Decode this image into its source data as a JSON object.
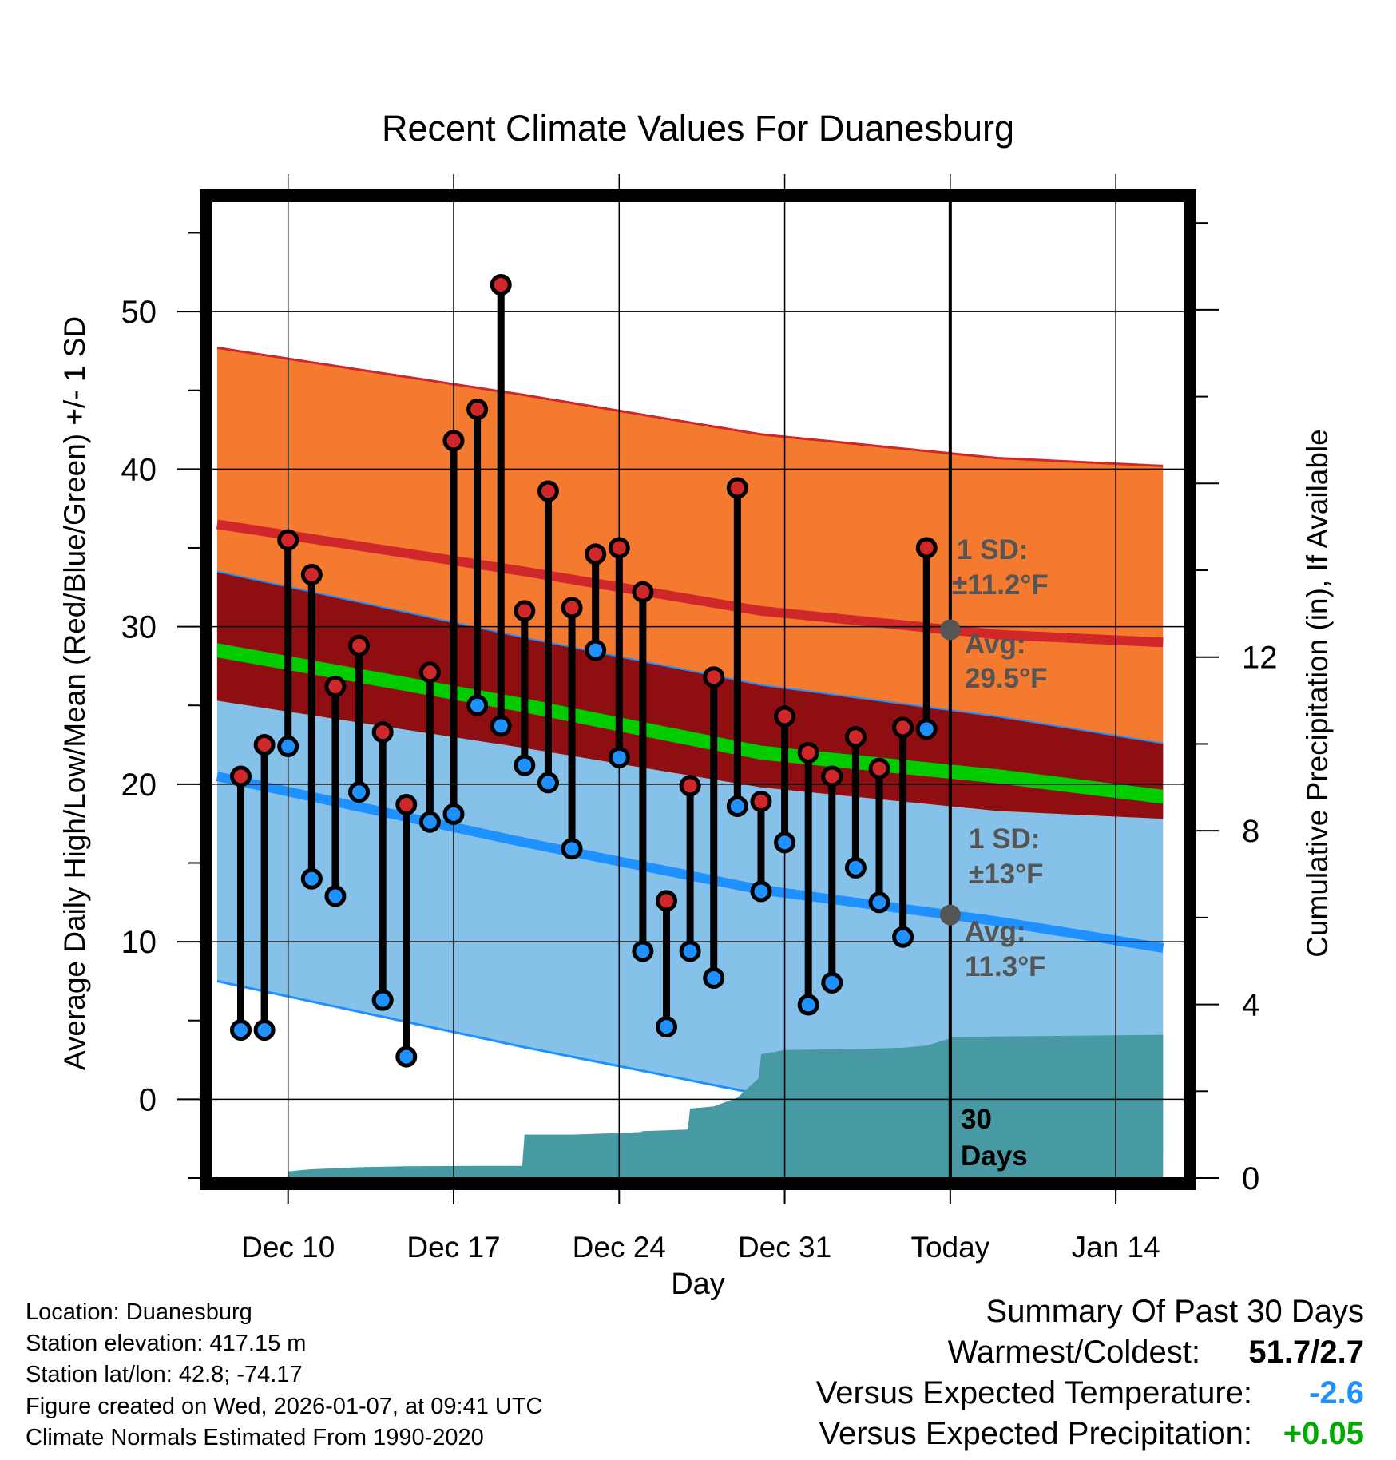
{
  "chart_data": {
    "type": "line",
    "title": "Recent Climate Values For Duanesburg",
    "xlabel": "Day",
    "ylabel": "Average Daily High/Low/Mean (Red/Blue/Green) +/- 1 SD",
    "y2label": "Cumulative Precipitation (in), If Available",
    "xticks": [
      "Dec 10",
      "Dec 17",
      "Dec 24",
      "Dec 31",
      "Today",
      "Jan 14"
    ],
    "xlim": [
      -3.3,
      37.9
    ],
    "ylim": [
      -5,
      57
    ],
    "y_ticks": [
      0,
      10,
      20,
      30,
      40,
      50
    ],
    "y2lim": [
      0,
      22.5
    ],
    "y2_ticks": [
      0,
      4,
      8,
      12
    ],
    "period_label": "30 Days",
    "days": [
      -2,
      -1,
      0,
      1,
      2,
      3,
      4,
      5,
      6,
      7,
      8,
      9,
      10,
      11,
      12,
      13,
      14,
      15,
      16,
      17,
      18,
      19,
      20,
      21,
      22,
      23,
      24,
      25,
      26,
      27
    ],
    "highs": [
      20.5,
      22.5,
      35.5,
      33.3,
      26.2,
      28.8,
      23.3,
      18.7,
      27.1,
      41.8,
      43.8,
      51.7,
      31.0,
      38.6,
      31.2,
      34.6,
      35.0,
      32.2,
      12.6,
      19.9,
      26.8,
      38.8,
      18.9,
      24.3,
      22.0,
      20.5,
      23.0,
      21.0,
      23.6,
      35.0
    ],
    "lows": [
      4.4,
      4.4,
      22.4,
      14.0,
      12.9,
      19.5,
      6.3,
      2.7,
      17.6,
      18.1,
      25.0,
      23.7,
      21.2,
      20.1,
      15.9,
      28.5,
      21.7,
      9.4,
      4.6,
      9.4,
      7.7,
      18.6,
      13.2,
      16.3,
      6.0,
      7.4,
      14.7,
      12.5,
      10.3,
      23.5
    ],
    "normal_high": {
      "x": [
        -3,
        10,
        20,
        30,
        37
      ],
      "mean": [
        36.5,
        33.5,
        31.0,
        29.5,
        29.0
      ],
      "sd": 11.2
    },
    "normal_low": {
      "x": [
        -3,
        10,
        20,
        30,
        37
      ],
      "mean": [
        20.5,
        16.3,
        13.3,
        11.3,
        9.6
      ],
      "sd": 13.0
    },
    "normal_mean": {
      "x": [
        -3,
        10,
        20,
        30,
        37
      ],
      "mean": [
        28.5,
        25.0,
        22.0,
        20.5,
        19.2
      ],
      "sd_halfwidth": 0.45
    },
    "precip": {
      "x": [
        -3,
        -0.05,
        0,
        0.9,
        3,
        5,
        8,
        9.9,
        10,
        11,
        12,
        13,
        14,
        14.9,
        15,
        16,
        16.9,
        17,
        18,
        19,
        19.9,
        20,
        21,
        24,
        26,
        27,
        27.9,
        28,
        37
      ],
      "cum": [
        0,
        0,
        0.15,
        0.2,
        0.25,
        0.27,
        0.28,
        0.28,
        1.0,
        1.0,
        1.0,
        1.02,
        1.04,
        1.06,
        1.08,
        1.1,
        1.12,
        1.6,
        1.65,
        1.85,
        2.3,
        2.85,
        2.95,
        2.97,
        3.0,
        3.05,
        3.2,
        3.25,
        3.3
      ]
    },
    "annotations": {
      "high_sd_label": "1 SD:",
      "high_sd_value": "±11.2°F",
      "high_avg_label": "Avg:",
      "high_avg_value": "29.5°F",
      "low_sd_label": "1 SD:",
      "low_sd_value": "±13°F",
      "low_avg_label": "Avg:",
      "low_avg_value": "11.3°F"
    },
    "colors": {
      "high_band": "#f47a2f",
      "high_line": "#d0282a",
      "mean_band": "#8f0e12",
      "mean_line": "#00cc00",
      "low_band": "#85c1e8",
      "low_line": "#1e90ff",
      "precip": "#479aa3",
      "high_marker": "#d0282a",
      "low_marker": "#1e90ff",
      "annotation": "#555555"
    }
  },
  "footer": {
    "location": "Location: Duanesburg",
    "elevation": "Station elevation: 417.15 m",
    "latlon": "Station lat/lon: 42.8; -74.17",
    "created": "Figure created on Wed, 2026-01-07, at 09:41 UTC",
    "normals": "Climate Normals Estimated From 1990-2020"
  },
  "summary": {
    "title": "Summary Of Past 30 Days",
    "warmest_label": "Warmest/Coldest:",
    "warmest_value": "51.7/2.7",
    "temp_label": "Versus Expected Temperature:",
    "temp_value": "-2.6",
    "temp_color": "#1e90ff",
    "precip_label": "Versus Expected Precipitation:",
    "precip_value": "+0.05",
    "precip_color": "#00aa00"
  }
}
